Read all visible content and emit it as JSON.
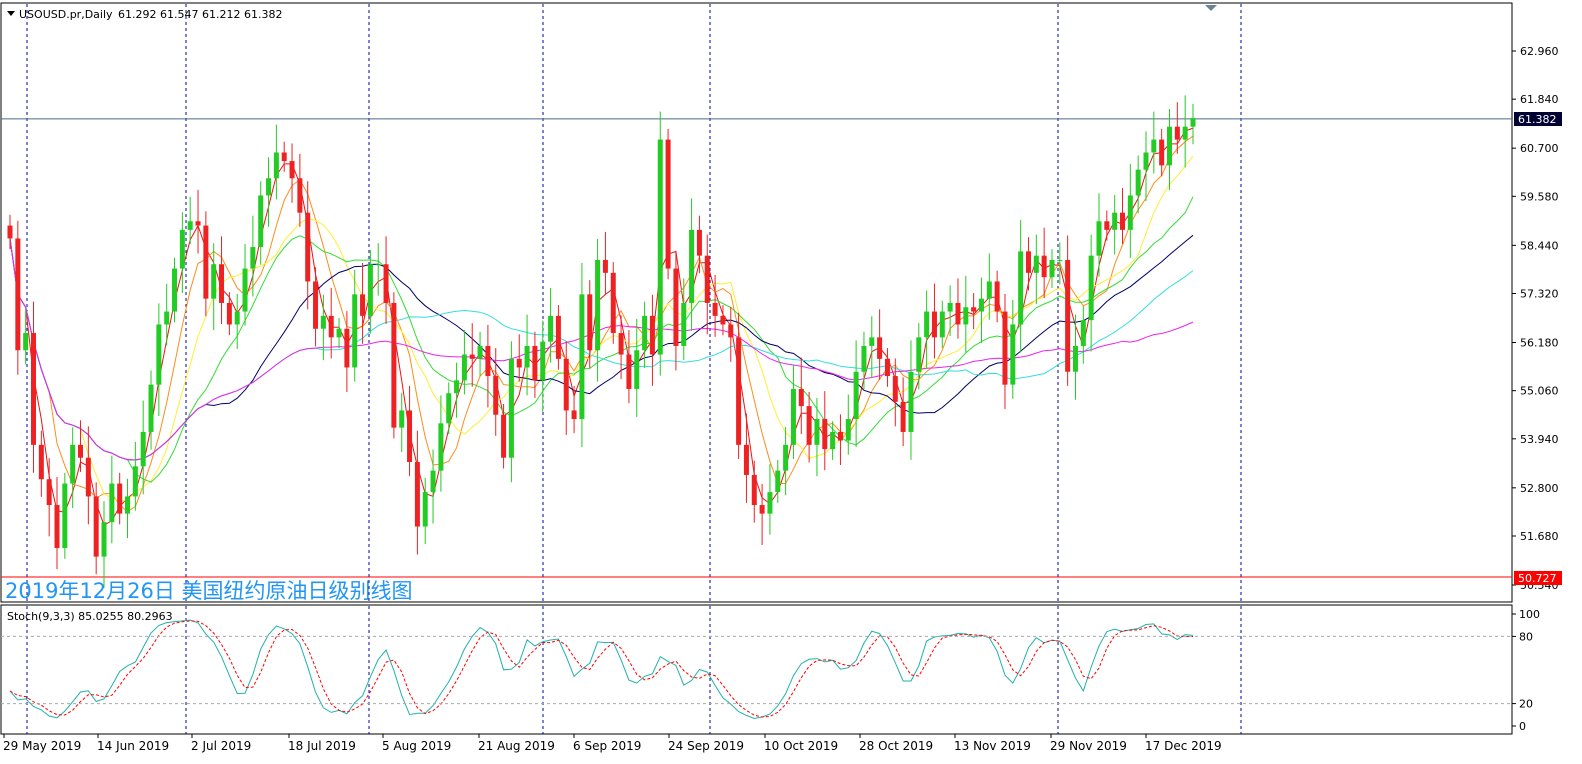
{
  "chart_data": [
    {
      "type": "candlestick",
      "header": {
        "symbol": "USOUSD.pr,Daily",
        "ohlc": "61.292 61.547 61.212 61.382"
      },
      "caption": "2019年12月26日 美国纽约原油日级别线图",
      "y_ticks": [
        "62.960",
        "61.840",
        "60.700",
        "59.580",
        "58.440",
        "57.320",
        "56.180",
        "55.060",
        "53.940",
        "52.800",
        "51.680",
        "50.540"
      ],
      "ylim": [
        50.5,
        64.0
      ],
      "x_labels": [
        "29 May 2019",
        "14 Jun 2019",
        "2 Jul 2019",
        "18 Jul 2019",
        "5 Aug 2019",
        "21 Aug 2019",
        "6 Sep 2019",
        "24 Sep 2019",
        "10 Oct 2019",
        "28 Oct 2019",
        "13 Nov 2019",
        "29 Nov 2019",
        "17 Dec 2019"
      ],
      "current_price": "61.382",
      "support_price": "50.727",
      "candles_close": [
        58.6,
        56.0,
        56.4,
        53.8,
        53.0,
        52.4,
        51.4,
        52.9,
        53.8,
        53.5,
        52.6,
        51.2,
        52.0,
        52.9,
        52.2,
        52.6,
        53.3,
        54.1,
        55.2,
        56.6,
        56.9,
        57.9,
        58.8,
        59.0,
        58.9,
        57.2,
        58.0,
        57.1,
        56.6,
        56.9,
        57.9,
        58.4,
        59.6,
        60.0,
        60.6,
        60.4,
        60.0,
        59.2,
        57.6,
        56.5,
        56.8,
        56.3,
        56.5,
        55.6,
        57.3,
        56.8,
        58.0,
        58.0,
        57.1,
        54.2,
        54.6,
        53.4,
        51.9,
        52.7,
        53.2,
        54.3,
        55.0,
        55.3,
        55.9,
        55.8,
        56.1,
        55.4,
        54.5,
        53.5,
        55.8,
        55.6,
        56.1,
        55.3,
        56.2,
        56.8,
        55.8,
        54.6,
        54.4,
        57.3,
        56.0,
        58.1,
        57.8,
        56.4,
        55.9,
        55.1,
        56.0,
        56.8,
        55.9,
        60.9,
        57.9,
        56.1,
        57.1,
        58.8,
        58.2,
        57.1,
        56.8,
        56.6,
        56.3,
        53.8,
        53.1,
        52.4,
        52.2,
        52.7,
        53.2,
        53.8,
        55.1,
        54.7,
        53.8,
        54.4,
        53.7,
        54.1,
        53.9,
        54.4,
        55.5,
        56.1,
        56.3,
        55.8,
        55.4,
        54.8,
        54.1,
        55.5,
        56.3,
        56.9,
        56.3,
        56.9,
        57.1,
        56.6,
        57.0,
        56.9,
        57.2,
        57.6,
        56.9,
        55.2,
        56.6,
        58.3,
        57.8,
        58.2,
        57.7,
        58.1,
        58.1,
        55.5,
        56.1,
        56.7,
        58.2,
        59.0,
        58.8,
        59.2,
        58.8,
        59.6,
        60.2,
        60.6,
        60.9,
        60.3,
        61.2,
        60.9,
        61.2,
        61.4
      ],
      "indicator": {
        "name": "Stoch(9,3,3) 85.0255 80.2963",
        "y_ticks": [
          "100",
          "80",
          "20",
          "0"
        ],
        "levels": [
          80,
          20
        ]
      }
    }
  ]
}
